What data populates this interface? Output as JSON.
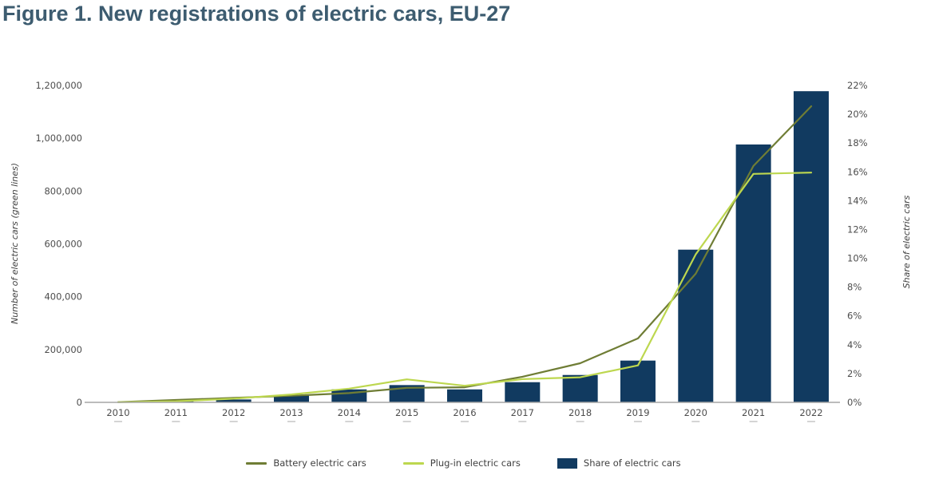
{
  "figure": {
    "title": "Figure 1. New registrations of electric cars, EU-27",
    "title_color": "#3d5c70"
  },
  "chart_data": {
    "type": "bar+line combo",
    "x": [
      2010,
      2011,
      2012,
      2013,
      2014,
      2015,
      2016,
      2017,
      2018,
      2019,
      2020,
      2021,
      2022
    ],
    "series": [
      {
        "name": "Battery electric cars",
        "type": "line",
        "axis": "left",
        "color": "#6f7d35",
        "values": [
          1000,
          9000,
          17000,
          25000,
          35000,
          55000,
          57000,
          97000,
          148000,
          242000,
          487000,
          895000,
          1121000
        ]
      },
      {
        "name": "Plug-in electric cars",
        "type": "line",
        "axis": "left",
        "color": "#bdd74f",
        "values": [
          500,
          4000,
          14000,
          30000,
          52000,
          87000,
          63000,
          88000,
          95000,
          140000,
          560000,
          865000,
          870000
        ]
      },
      {
        "name": "Share of electric cars",
        "type": "bar",
        "axis": "right",
        "color": "#113a60",
        "values": [
          0.0,
          0.1,
          0.2,
          0.5,
          0.9,
          1.2,
          0.9,
          1.4,
          1.9,
          2.9,
          10.6,
          17.9,
          21.6
        ]
      }
    ],
    "left_axis": {
      "label": "Number of electric cars (green lines)",
      "min": 0,
      "max": 1200000,
      "tick_step": 200000
    },
    "right_axis": {
      "label": "Share of electric cars",
      "min": 0,
      "max": 22,
      "tick_step": 2,
      "suffix": "%"
    },
    "grid": false,
    "legend_position": "bottom",
    "axis_line_color": "#a6a6a6"
  },
  "legend": {
    "items": [
      {
        "label": "Battery electric cars",
        "marker": "line",
        "color": "#6f7d35"
      },
      {
        "label": "Plug-in electric cars",
        "marker": "line",
        "color": "#bdd74f"
      },
      {
        "label": "Share of electric cars",
        "marker": "rect",
        "color": "#113a60"
      }
    ]
  }
}
